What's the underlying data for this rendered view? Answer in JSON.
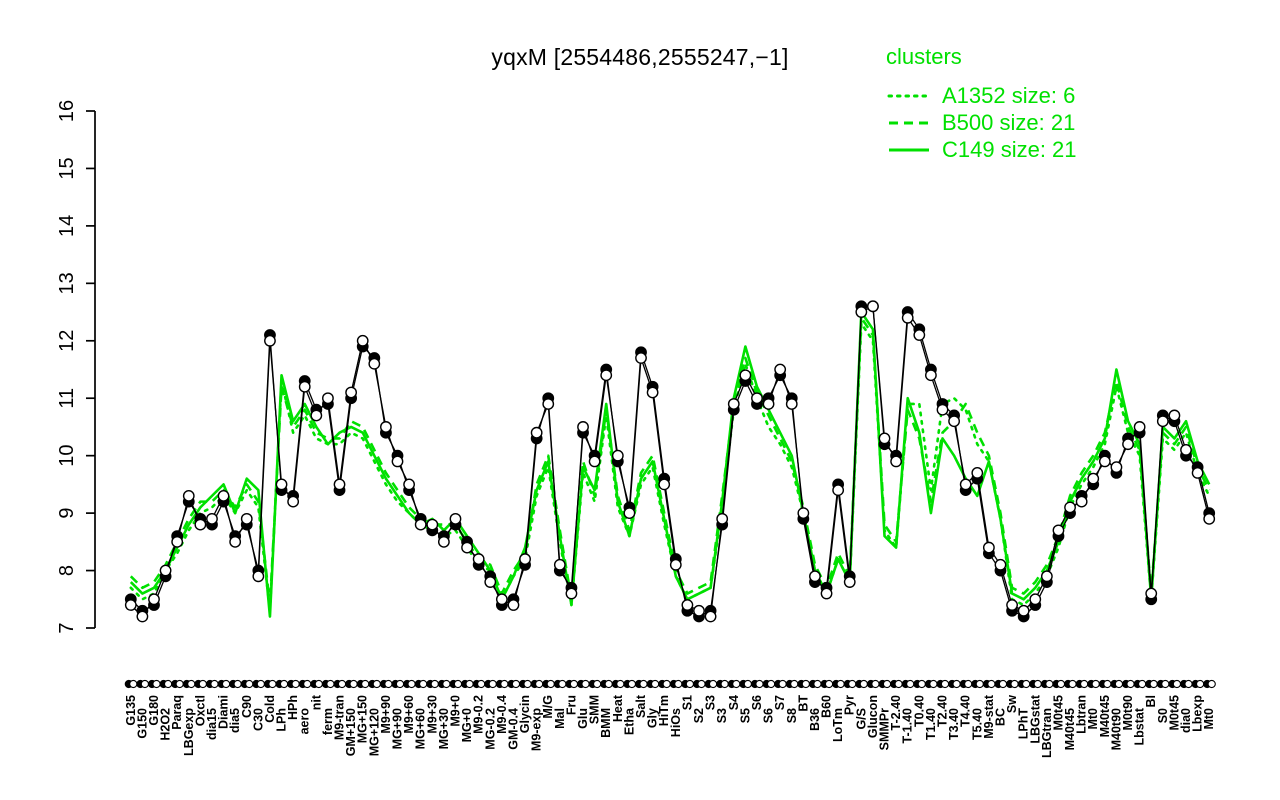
{
  "title": "yqxM [2554486,2555247,−1]",
  "colors": {
    "cluster": "#00e000",
    "probe": "#000000",
    "background": "#ffffff"
  },
  "legend": {
    "title": "clusters",
    "items": [
      {
        "label": "A1352 size: 6",
        "style": "dotted"
      },
      {
        "label": "B500 size: 21",
        "style": "dashed"
      },
      {
        "label": "C149 size: 21",
        "style": "solid"
      }
    ]
  },
  "chart_data": {
    "type": "line",
    "title": "yqxM [2554486,2555247,−1]",
    "xlabel": "",
    "ylabel": "",
    "ylim": [
      7,
      16
    ],
    "yticks": [
      7,
      8,
      9,
      10,
      11,
      12,
      13,
      14,
      15,
      16
    ],
    "grid": false,
    "legend_position": "top-right",
    "categories": [
      "G135",
      "G150",
      "G180",
      "H2O2",
      "Paraq",
      "LBGexp",
      "Oxctl",
      "dia15",
      "Diami",
      "dia5",
      "C90",
      "C30",
      "Cold",
      "LPh",
      "HPh",
      "aero",
      "nit",
      "ferm",
      "M9-tran",
      "GM+150",
      "MG+150",
      "MG+120",
      "M9+90",
      "MG+90",
      "M9+60",
      "MG+60",
      "M9+30",
      "MG+30",
      "M9+0",
      "MG+0",
      "M9-0.2",
      "MG-0.2",
      "M9-0.4",
      "GM-0.4",
      "Glycin",
      "M9-exp",
      "M/G",
      "Mal",
      "Fru",
      "Glu",
      "SMM",
      "BMM",
      "Heat",
      "Etha",
      "Salt",
      "Gly",
      "HiTm",
      "HiOs",
      "S1",
      "S2",
      "S3",
      "S3",
      "S4",
      "S5",
      "S6",
      "S6",
      "S7",
      "S8",
      "BT",
      "B36",
      "B60",
      "LoTm",
      "Pyr",
      "G/S",
      "Glucon",
      "SMMPr",
      "T-2.40",
      "T-1.40",
      "T0.40",
      "T1.40",
      "T2.40",
      "T3.40",
      "T4.40",
      "T5.40",
      "M9-stat",
      "BC",
      "Sw",
      "LPhT",
      "LBGstat",
      "LBGtran",
      "M0t45",
      "M40t45",
      "Lbtran",
      "Mt0",
      "M40t45",
      "M40t90",
      "M0t90",
      "Lbstat",
      "Bl",
      "S0",
      "M0t45",
      "dia0",
      "Lbexp",
      "Mt0"
    ],
    "series": [
      {
        "name": "probe-filled",
        "marker": "filled-circle",
        "color": "#000000",
        "values": [
          7.5,
          7.3,
          7.4,
          7.9,
          8.6,
          9.2,
          8.9,
          8.8,
          9.2,
          8.6,
          8.8,
          8.0,
          12.1,
          9.4,
          9.3,
          11.3,
          10.8,
          10.9,
          9.4,
          11.0,
          11.9,
          11.7,
          10.4,
          10.0,
          9.4,
          8.9,
          8.7,
          8.6,
          8.8,
          8.5,
          8.1,
          7.9,
          7.4,
          7.5,
          8.1,
          10.3,
          11.0,
          8.0,
          7.7,
          10.4,
          10.0,
          11.5,
          9.9,
          9.1,
          11.8,
          11.2,
          9.6,
          8.2,
          7.3,
          7.2,
          7.3,
          8.8,
          10.8,
          11.3,
          10.9,
          11.0,
          11.4,
          11.0,
          8.9,
          7.8,
          7.7,
          9.5,
          7.9,
          12.6,
          12.6,
          10.2,
          10.0,
          12.5,
          12.2,
          11.5,
          10.9,
          10.7,
          9.4,
          9.6,
          8.3,
          8.0,
          7.3,
          7.2,
          7.4,
          7.8,
          8.6,
          9.0,
          9.3,
          9.5,
          10.0,
          9.7,
          10.3,
          10.4,
          7.5,
          10.7,
          10.6,
          10.0,
          9.8,
          9.0
        ]
      },
      {
        "name": "probe-open",
        "marker": "open-circle",
        "color": "#000000",
        "values": [
          7.4,
          7.2,
          7.5,
          8.0,
          8.5,
          9.3,
          8.8,
          8.9,
          9.3,
          8.5,
          8.9,
          7.9,
          12.0,
          9.5,
          9.2,
          11.2,
          10.7,
          11.0,
          9.5,
          11.1,
          12.0,
          11.6,
          10.5,
          9.9,
          9.5,
          8.8,
          8.8,
          8.5,
          8.9,
          8.4,
          8.2,
          7.8,
          7.5,
          7.4,
          8.2,
          10.4,
          10.9,
          8.1,
          7.6,
          10.5,
          9.9,
          11.4,
          10.0,
          9.0,
          11.7,
          11.1,
          9.5,
          8.1,
          7.4,
          7.3,
          7.2,
          8.9,
          10.9,
          11.4,
          11.0,
          10.9,
          11.5,
          10.9,
          9.0,
          7.9,
          7.6,
          9.4,
          7.8,
          12.5,
          12.6,
          10.3,
          9.9,
          12.4,
          12.1,
          11.4,
          10.8,
          10.6,
          9.5,
          9.7,
          8.4,
          8.1,
          7.4,
          7.3,
          7.5,
          7.9,
          8.7,
          9.1,
          9.2,
          9.6,
          9.9,
          9.8,
          10.2,
          10.5,
          7.6,
          10.6,
          10.7,
          10.1,
          9.7,
          8.9
        ]
      },
      {
        "name": "A1352",
        "style": "dotted",
        "color": "#00e000",
        "values": [
          7.7,
          7.5,
          7.6,
          8.0,
          8.3,
          8.7,
          9.0,
          9.1,
          9.3,
          9.0,
          9.4,
          9.1,
          7.3,
          11.3,
          10.4,
          10.7,
          10.3,
          10.2,
          10.2,
          10.4,
          10.3,
          9.9,
          9.5,
          9.2,
          9.0,
          8.8,
          8.7,
          8.6,
          8.7,
          8.4,
          8.1,
          8.0,
          7.5,
          7.9,
          8.2,
          9.3,
          9.8,
          8.5,
          7.4,
          9.7,
          9.2,
          10.7,
          9.1,
          8.6,
          9.5,
          9.8,
          8.8,
          7.9,
          7.5,
          7.6,
          7.7,
          9.1,
          10.8,
          11.6,
          11.0,
          10.5,
          10.2,
          9.8,
          9.0,
          8.0,
          7.6,
          8.2,
          7.8,
          12.3,
          12.0,
          8.7,
          8.4,
          10.9,
          10.9,
          9.4,
          10.9,
          11.0,
          10.8,
          10.2,
          9.9,
          8.9,
          7.5,
          7.4,
          7.6,
          7.9,
          8.4,
          9.1,
          9.5,
          9.8,
          10.2,
          11.2,
          10.4,
          10.0,
          7.5,
          10.3,
          10.1,
          10.4,
          9.7,
          9.3
        ]
      },
      {
        "name": "B500",
        "style": "dashed",
        "color": "#00e000",
        "values": [
          7.9,
          7.7,
          7.8,
          8.1,
          8.5,
          8.9,
          9.2,
          9.2,
          9.4,
          9.1,
          9.5,
          9.2,
          7.4,
          11.2,
          10.5,
          10.8,
          10.4,
          10.3,
          10.3,
          10.6,
          10.5,
          10.1,
          9.7,
          9.4,
          9.1,
          8.9,
          8.8,
          8.8,
          8.8,
          8.5,
          8.2,
          8.1,
          7.6,
          8.0,
          8.3,
          9.5,
          10.0,
          8.7,
          7.5,
          9.9,
          9.3,
          10.8,
          9.3,
          8.7,
          9.7,
          10.0,
          9.0,
          8.0,
          7.6,
          7.7,
          7.8,
          9.3,
          10.9,
          11.7,
          11.1,
          10.7,
          10.3,
          9.9,
          9.1,
          8.1,
          7.7,
          8.3,
          7.9,
          12.4,
          12.1,
          8.8,
          8.5,
          10.8,
          10.3,
          9.2,
          10.4,
          10.6,
          10.9,
          10.4,
          10.0,
          9.0,
          7.7,
          7.6,
          7.8,
          8.1,
          8.6,
          9.3,
          9.7,
          10.0,
          10.4,
          11.3,
          10.5,
          10.1,
          7.6,
          10.4,
          10.2,
          10.5,
          9.8,
          9.4
        ]
      },
      {
        "name": "C149",
        "style": "solid",
        "color": "#00e000",
        "values": [
          7.8,
          7.6,
          7.7,
          8.0,
          8.4,
          8.8,
          9.1,
          9.3,
          9.5,
          9.0,
          9.6,
          9.4,
          7.2,
          11.4,
          10.6,
          10.9,
          10.5,
          10.2,
          10.4,
          10.5,
          10.4,
          10.0,
          9.6,
          9.3,
          9.0,
          8.8,
          8.9,
          8.7,
          8.9,
          8.6,
          8.3,
          8.0,
          7.5,
          7.9,
          8.4,
          9.4,
          9.9,
          8.6,
          7.4,
          9.8,
          9.4,
          10.9,
          9.2,
          8.6,
          9.6,
          9.9,
          8.9,
          7.9,
          7.5,
          7.6,
          7.7,
          9.2,
          11.0,
          11.9,
          11.2,
          10.8,
          10.4,
          10.0,
          9.0,
          8.0,
          7.6,
          8.2,
          7.8,
          12.5,
          12.2,
          8.6,
          8.4,
          11.0,
          10.4,
          9.0,
          10.3,
          10.0,
          9.6,
          9.3,
          9.9,
          8.9,
          7.6,
          7.5,
          7.7,
          8.0,
          8.5,
          9.2,
          9.6,
          9.9,
          10.3,
          11.5,
          10.6,
          10.2,
          7.5,
          10.5,
          10.3,
          10.6,
          9.9,
          9.5
        ]
      }
    ]
  }
}
